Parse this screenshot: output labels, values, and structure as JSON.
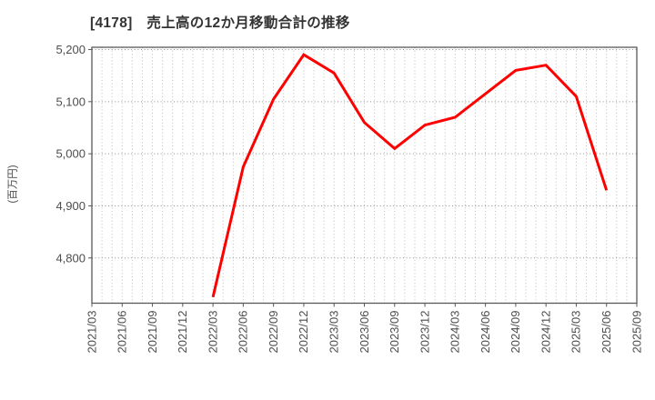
{
  "chart_data": {
    "type": "line",
    "title": "[4178]　売上高の12か月移動合計の推移",
    "ylabel": "(百万円)",
    "xlabel": "",
    "categories": [
      "2021/03",
      "2021/06",
      "2021/09",
      "2021/12",
      "2022/03",
      "2022/06",
      "2022/09",
      "2022/12",
      "2023/03",
      "2023/06",
      "2023/09",
      "2023/12",
      "2024/03",
      "2024/06",
      "2024/09",
      "2024/12",
      "2025/03",
      "2025/06",
      "2025/09"
    ],
    "series": [
      {
        "color": "#ff0000",
        "values": [
          null,
          null,
          null,
          null,
          4725,
          4975,
          5105,
          5190,
          5155,
          5060,
          5010,
          5055,
          5070,
          5115,
          5160,
          5170,
          5110,
          4930,
          null
        ]
      }
    ],
    "yticks": [
      4800,
      4900,
      5000,
      5100,
      5200
    ],
    "ylim": [
      4713,
      5205
    ],
    "grid": "dotted, horizontal at yticks, vertical monthly minor",
    "legend": "none"
  },
  "style": {
    "background": "#ffffff",
    "line_color": "#ff0000",
    "title_color": "#333333",
    "tick_label_color": "#4d4d4d",
    "axis_color": "#595959",
    "h_grid_color": "#8f8f8f",
    "v_grid_color": "#bbbbbb"
  }
}
